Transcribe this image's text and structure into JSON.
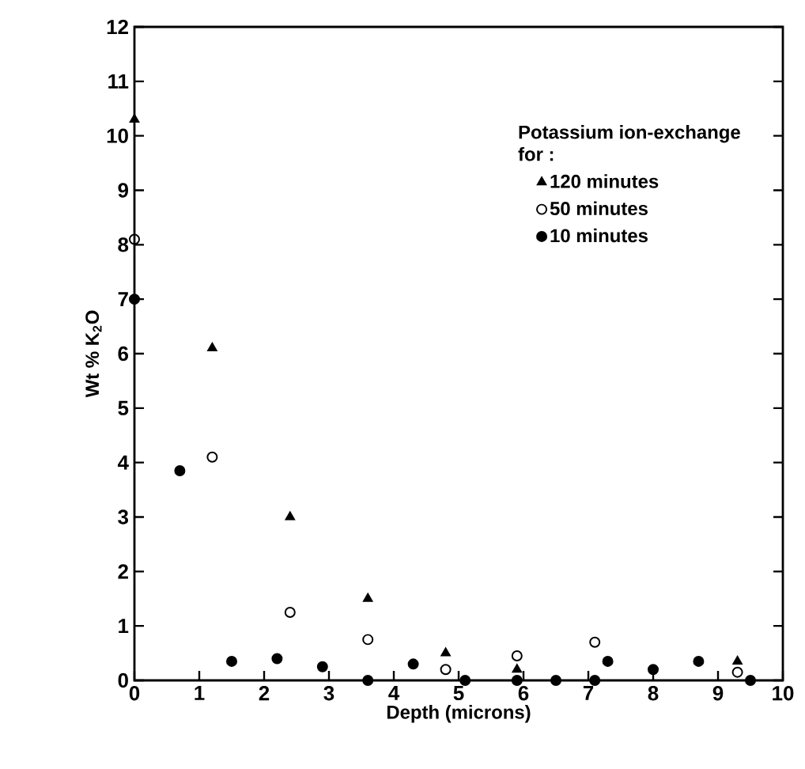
{
  "chart_data": {
    "type": "scatter",
    "xlabel": "Depth  (microns)",
    "ylabel": "Wt  %  K$_{2}$O",
    "legend_title": "Potassium ion-exchange for :",
    "legend": "top right",
    "grid": false,
    "xlim": [
      0,
      10
    ],
    "xticks": [
      0,
      1,
      2,
      3,
      4,
      5,
      6,
      7,
      8,
      9,
      10
    ],
    "ylim": [
      0,
      12
    ],
    "yticks": [
      0,
      1,
      2,
      3,
      4,
      5,
      6,
      7,
      8,
      9,
      10,
      11,
      12
    ],
    "series": [
      {
        "name": "120 minutes",
        "color": "#000000",
        "marker": "triangle",
        "x": [
          0,
          1.2,
          2.4,
          3.6,
          4.8,
          5.9,
          9.3
        ],
        "values": [
          10.3,
          6.1,
          3.0,
          1.5,
          0.5,
          0.2,
          0.35
        ]
      },
      {
        "name": "50 minutes",
        "color": "#000000",
        "marker": "circle_open",
        "x": [
          0,
          1.2,
          2.4,
          3.6,
          4.8,
          5.9,
          7.1,
          9.3
        ],
        "values": [
          8.1,
          4.1,
          1.25,
          0.75,
          0.2,
          0.45,
          0.7,
          0.15
        ]
      },
      {
        "name": "10 minutes",
        "color": "#000000",
        "marker": "circle",
        "x": [
          0,
          0.7,
          1.5,
          2.2,
          2.9,
          3.6,
          4.3,
          5.1,
          5.9,
          6.5,
          7.1,
          7.3,
          8.0,
          8.7,
          9.5
        ],
        "values": [
          7.0,
          3.85,
          0.35,
          0.4,
          0.25,
          0.0,
          0.3,
          0.0,
          0.0,
          0.0,
          0.0,
          0.35,
          0.2,
          0.35,
          0.0
        ]
      }
    ]
  }
}
